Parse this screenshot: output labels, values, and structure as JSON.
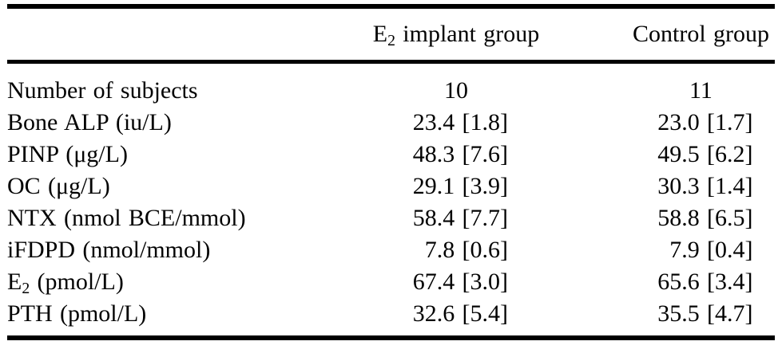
{
  "colors": {
    "text": "#030303",
    "background": "#ffffff",
    "rule": "#000000"
  },
  "table": {
    "headers": {
      "empty": "",
      "e2_group": {
        "main": "E",
        "sub": "2",
        "rest": " implant group"
      },
      "control_group": {
        "main": "Control group"
      }
    },
    "rows": [
      {
        "label": "Number of subjects",
        "e2": "10",
        "control": "11"
      },
      {
        "label": "Bone ALP (iu/L)",
        "e2": "23.4 [1.8]",
        "control": "23.0 [1.7]"
      },
      {
        "label": "PINP (μg/L)",
        "e2": "48.3 [7.6]",
        "control": "49.5 [6.2]"
      },
      {
        "label": "OC (μg/L)",
        "e2": "29.1 [3.9]",
        "control": "30.3 [1.4]"
      },
      {
        "label": "NTX (nmol BCE/mmol)",
        "e2": "58.4 [7.7]",
        "control": "58.8 [6.5]"
      },
      {
        "label": "iFDPD (nmol/mmol)",
        "e2": "7.8 [0.6]",
        "control": "7.9 [0.4]"
      },
      {
        "label": "E",
        "label_sub": "2",
        "label_rest": " (pmol/L)",
        "e2": "67.4 [3.0]",
        "control": "65.6 [3.4]"
      },
      {
        "label": "PTH (pmol/L)",
        "e2": "32.6 [5.4]",
        "control": "35.5 [4.7]"
      }
    ]
  }
}
